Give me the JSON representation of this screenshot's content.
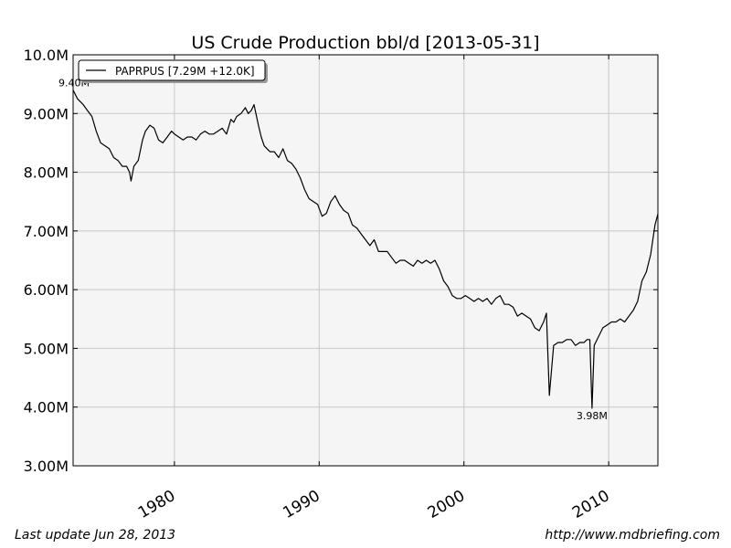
{
  "chart_data": {
    "type": "line",
    "title": "US Crude Production bbl/d  [2013-05-31]",
    "xlabel": "",
    "ylabel": "",
    "xlim": [
      1973.0,
      2013.4
    ],
    "ylim": [
      3.0,
      10.0
    ],
    "x_ticks": [
      1980,
      1990,
      2000,
      2010
    ],
    "y_ticks": [
      3.0,
      4.0,
      5.0,
      6.0,
      7.0,
      8.0,
      9.0,
      10.0
    ],
    "y_tick_labels": [
      "3.00M",
      "4.00M",
      "5.00M",
      "6.00M",
      "7.00M",
      "8.00M",
      "9.00M",
      "10.0M"
    ],
    "grid": true,
    "legend_position": "top-left",
    "series": [
      {
        "name": "PAPRPUS [7.29M +12.0K]",
        "color": "#000000",
        "x": [
          1973.0,
          1973.3,
          1973.7,
          1974.0,
          1974.3,
          1974.6,
          1974.9,
          1975.2,
          1975.5,
          1975.8,
          1976.1,
          1976.4,
          1976.7,
          1976.9,
          1977.0,
          1977.2,
          1977.5,
          1977.8,
          1978.0,
          1978.3,
          1978.6,
          1978.9,
          1979.2,
          1979.5,
          1979.8,
          1980.0,
          1980.3,
          1980.6,
          1980.9,
          1981.2,
          1981.5,
          1981.8,
          1982.1,
          1982.4,
          1982.7,
          1983.0,
          1983.3,
          1983.6,
          1983.9,
          1984.1,
          1984.3,
          1984.6,
          1984.9,
          1985.1,
          1985.3,
          1985.5,
          1985.8,
          1986.0,
          1986.2,
          1986.4,
          1986.6,
          1986.9,
          1987.2,
          1987.5,
          1987.8,
          1988.1,
          1988.4,
          1988.7,
          1989.0,
          1989.3,
          1989.6,
          1989.9,
          1990.2,
          1990.5,
          1990.8,
          1991.1,
          1991.4,
          1991.7,
          1992.0,
          1992.3,
          1992.6,
          1992.9,
          1993.2,
          1993.5,
          1993.8,
          1994.1,
          1994.4,
          1994.7,
          1995.0,
          1995.3,
          1995.6,
          1995.9,
          1996.2,
          1996.5,
          1996.8,
          1997.1,
          1997.4,
          1997.7,
          1998.0,
          1998.3,
          1998.6,
          1998.9,
          1999.2,
          1999.5,
          1999.8,
          2000.1,
          2000.4,
          2000.7,
          2001.0,
          2001.3,
          2001.6,
          2001.9,
          2002.2,
          2002.5,
          2002.8,
          2003.1,
          2003.4,
          2003.7,
          2004.0,
          2004.3,
          2004.6,
          2004.9,
          2005.2,
          2005.5,
          2005.7,
          2005.9,
          2006.2,
          2006.5,
          2006.8,
          2007.1,
          2007.4,
          2007.7,
          2008.0,
          2008.3,
          2008.5,
          2008.7,
          2008.85,
          2009.0,
          2009.3,
          2009.6,
          2009.9,
          2010.2,
          2010.5,
          2010.8,
          2011.1,
          2011.4,
          2011.7,
          2012.0,
          2012.3,
          2012.6,
          2012.9,
          2013.2,
          2013.4
        ],
        "values": [
          9.4,
          9.25,
          9.15,
          9.05,
          8.95,
          8.7,
          8.5,
          8.45,
          8.4,
          8.25,
          8.2,
          8.1,
          8.1,
          8.0,
          7.85,
          8.1,
          8.2,
          8.55,
          8.7,
          8.8,
          8.75,
          8.55,
          8.5,
          8.6,
          8.7,
          8.65,
          8.6,
          8.55,
          8.6,
          8.6,
          8.55,
          8.65,
          8.7,
          8.65,
          8.65,
          8.7,
          8.75,
          8.65,
          8.9,
          8.85,
          8.95,
          9.0,
          9.1,
          9.0,
          9.05,
          9.15,
          8.8,
          8.6,
          8.45,
          8.4,
          8.35,
          8.35,
          8.25,
          8.4,
          8.2,
          8.15,
          8.05,
          7.9,
          7.7,
          7.55,
          7.5,
          7.45,
          7.25,
          7.3,
          7.5,
          7.6,
          7.45,
          7.35,
          7.3,
          7.1,
          7.05,
          6.95,
          6.85,
          6.75,
          6.85,
          6.65,
          6.65,
          6.65,
          6.55,
          6.45,
          6.5,
          6.5,
          6.45,
          6.4,
          6.5,
          6.45,
          6.5,
          6.45,
          6.5,
          6.35,
          6.15,
          6.05,
          5.9,
          5.85,
          5.85,
          5.9,
          5.85,
          5.8,
          5.85,
          5.8,
          5.85,
          5.75,
          5.85,
          5.9,
          5.75,
          5.75,
          5.7,
          5.55,
          5.6,
          5.55,
          5.5,
          5.35,
          5.3,
          5.45,
          5.6,
          4.2,
          5.05,
          5.1,
          5.1,
          5.15,
          5.15,
          5.05,
          5.1,
          5.1,
          5.15,
          5.15,
          3.98,
          5.05,
          5.2,
          5.35,
          5.4,
          5.45,
          5.45,
          5.5,
          5.45,
          5.55,
          5.65,
          5.8,
          6.15,
          6.3,
          6.6,
          7.1,
          7.29
        ]
      }
    ],
    "annotations": [
      {
        "text": "9.40M",
        "x": 1973.0,
        "y": 9.4
      },
      {
        "text": "3.98M",
        "x": 2008.85,
        "y": 3.98
      }
    ]
  },
  "footer": {
    "last_update": "Last update Jun 28, 2013",
    "url": "http://www.mdbriefing.com"
  }
}
